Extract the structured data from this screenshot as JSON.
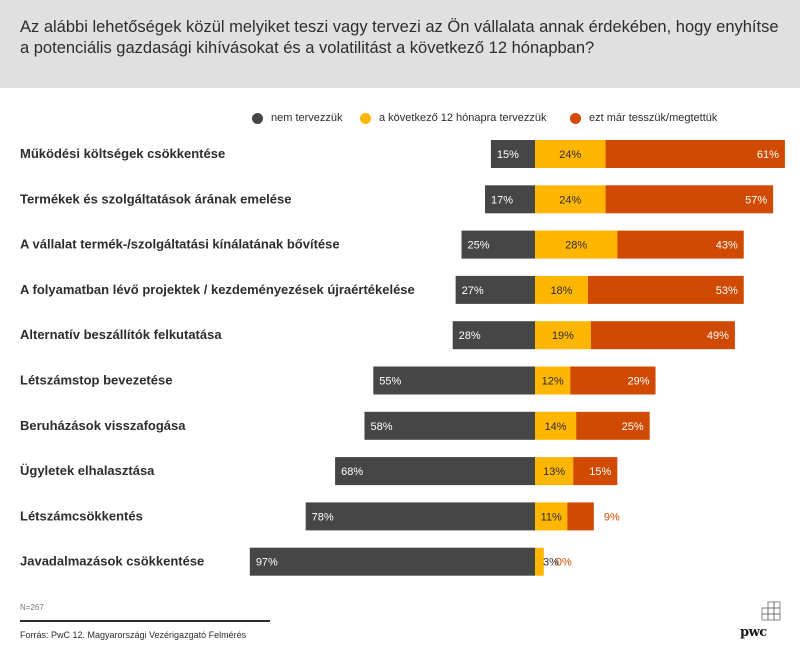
{
  "header": {
    "title": "Az alábbi lehetőségek közül melyiket teszi vagy tervezi az Ön vállalata annak érdekében, hogy enyhítse a potenciális gazdasági kihívásokat és a volatilitást a következő 12 hónapban?"
  },
  "colors": {
    "not_planned": "#464646",
    "planned": "#ffb600",
    "done": "#d04a02",
    "zero_label": "#d04a02"
  },
  "chart_data": {
    "type": "bar",
    "orientation": "horizontal",
    "stacked": "diverging",
    "legend_position": "top-right",
    "categories": [
      "Működési költségek csökkentése",
      "Termékek és szolgáltatások árának emelése",
      "A vállalat termék-/szolgáltatási kínálatának bővítése",
      "A folyamatban lévő projektek / kezdeményezések újraértékelése",
      "Alternatív beszállítók felkutatása",
      "Létszámstop bevezetése",
      "Beruházások visszafogása",
      "Ügyletek elhalasztása",
      "Létszámcsökkentés",
      "Javadalmazások csökkentése"
    ],
    "series": [
      {
        "name": "nem tervezzük",
        "values": [
          15,
          17,
          25,
          27,
          28,
          55,
          58,
          68,
          78,
          97
        ],
        "labels": [
          "15%",
          "17%",
          "25%",
          "27%",
          "28%",
          "55%",
          "58%",
          "68%",
          "78%",
          "97%"
        ]
      },
      {
        "name": "a következő 12 hónapra tervezzük",
        "values": [
          24,
          24,
          28,
          18,
          19,
          12,
          14,
          13,
          11,
          3
        ],
        "labels": [
          "24%",
          "24%",
          "28%",
          "18%",
          "19%",
          "12%",
          "14%",
          "13%",
          "11%",
          "3%"
        ]
      },
      {
        "name": "ezt már tesszük/megtettük",
        "values": [
          61,
          57,
          43,
          53,
          49,
          29,
          25,
          15,
          9,
          0
        ],
        "labels": [
          "61%",
          "57%",
          "43%",
          "53%",
          "49%",
          "29%",
          "25%",
          "15%",
          "9%",
          "0%"
        ]
      }
    ]
  },
  "footer": {
    "sample": "N=267",
    "source": "Forrás: PwC 12. Magyarországi Vezérigazgató Felmérés"
  },
  "logo": {
    "text": "pwc"
  }
}
